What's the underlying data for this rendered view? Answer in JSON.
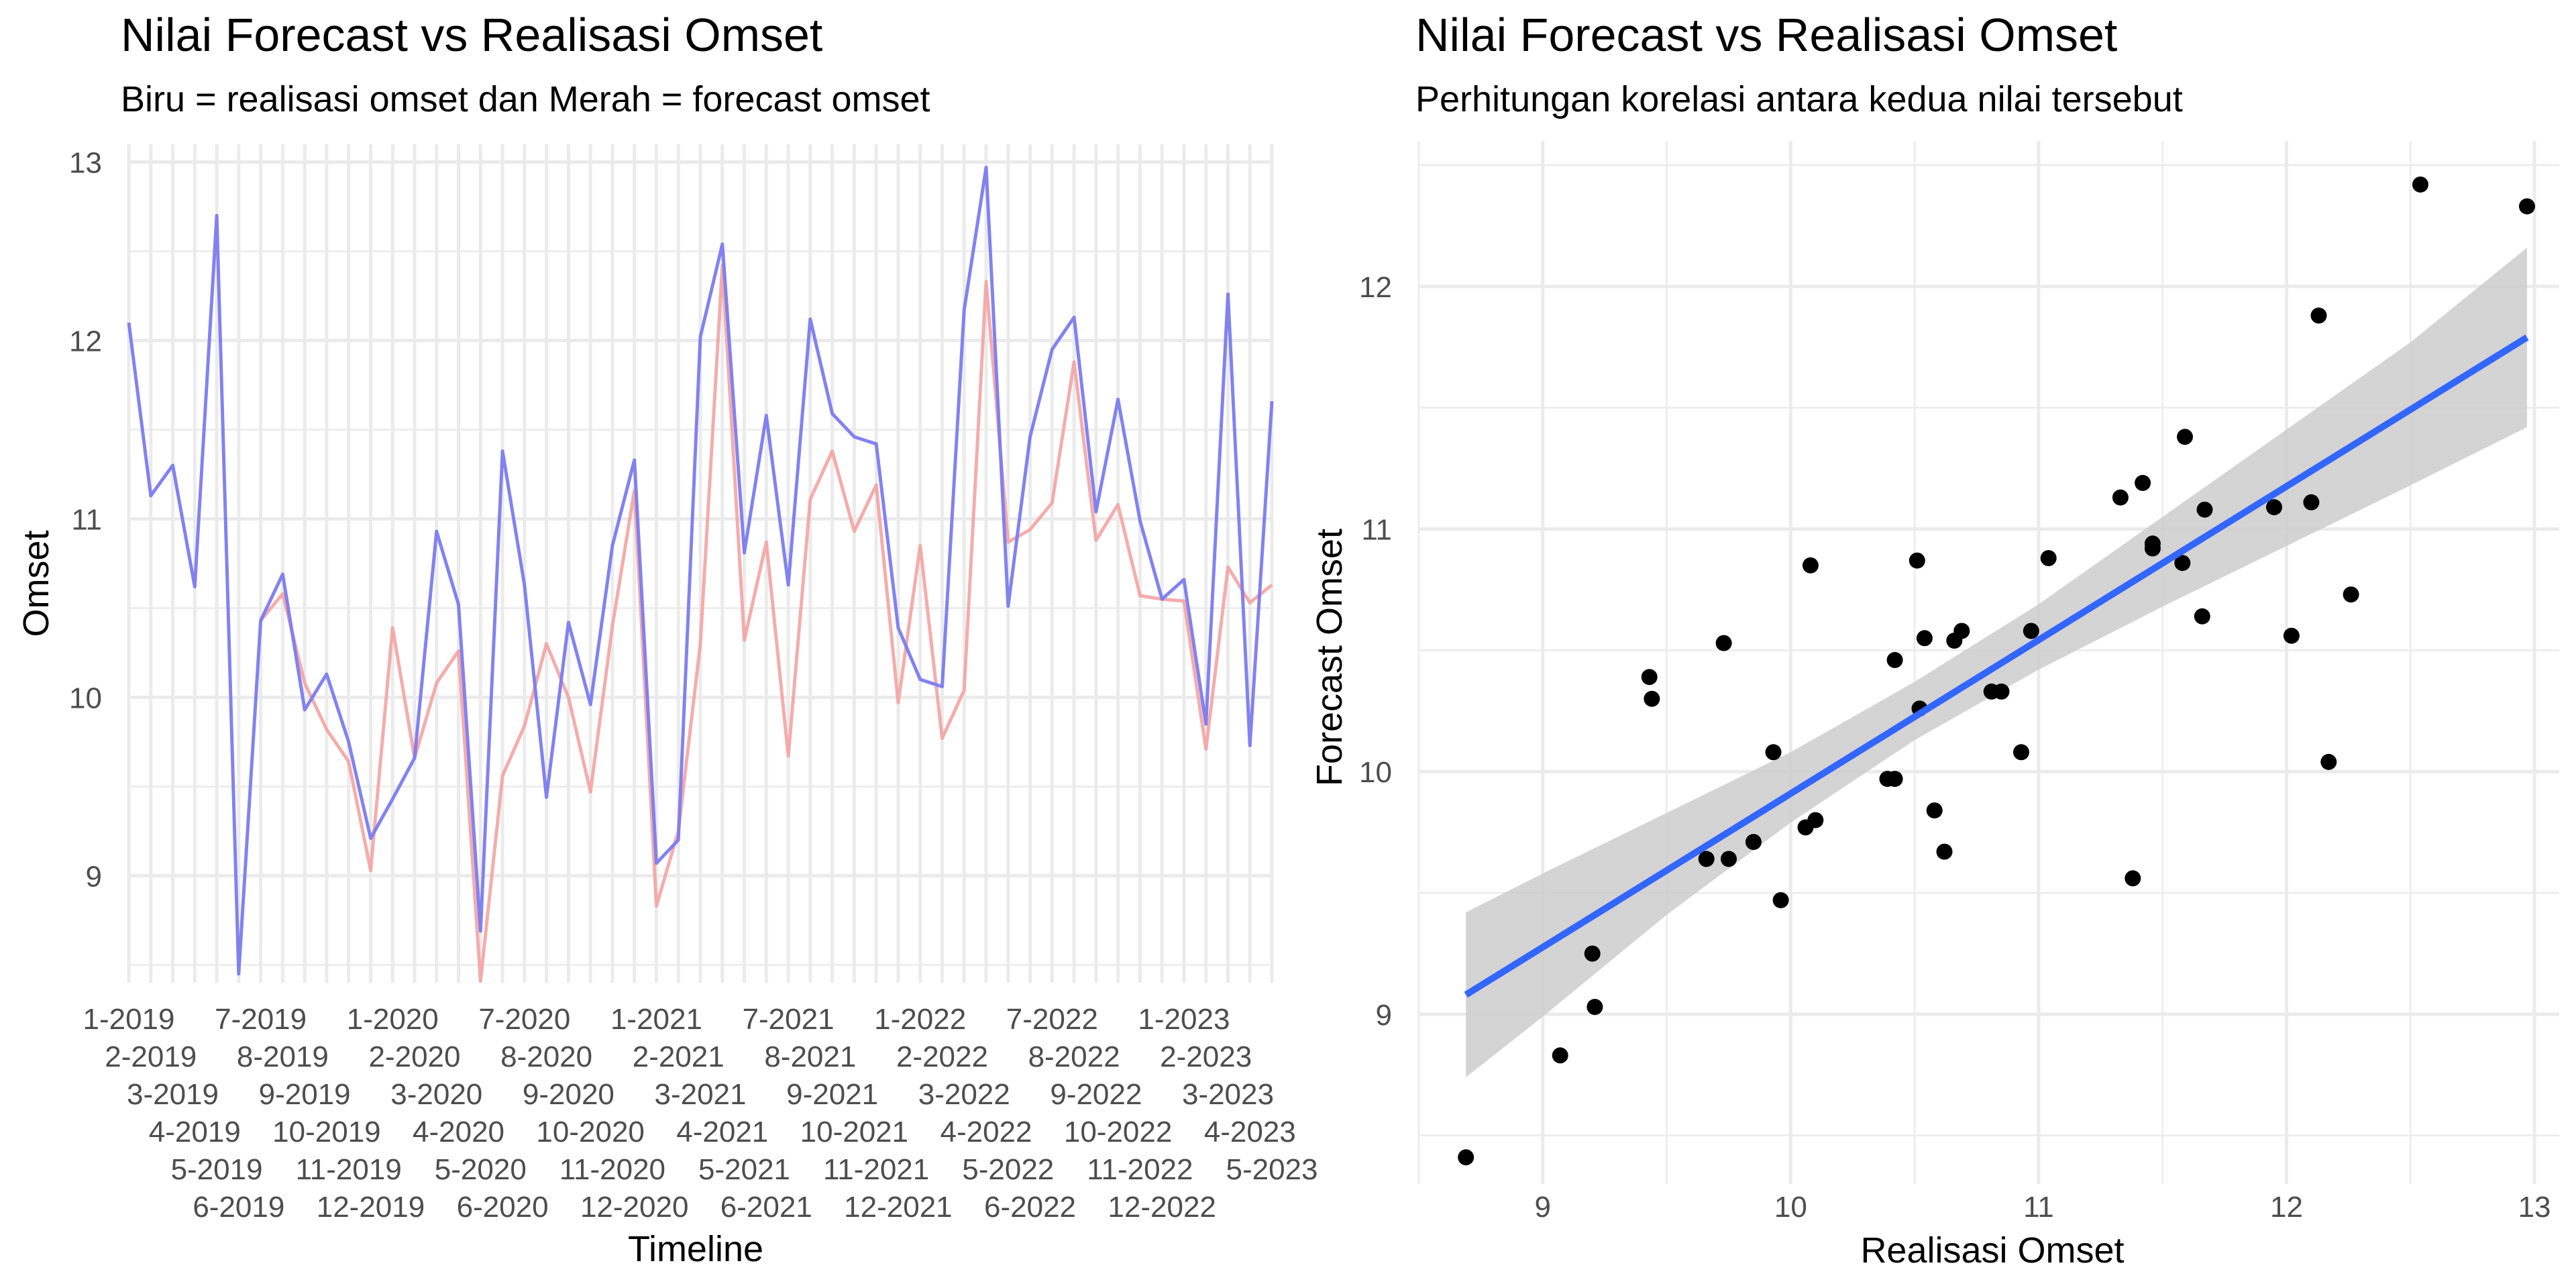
{
  "chart_data": [
    {
      "type": "line",
      "title": "Nilai Forecast vs Realisasi Omset",
      "subtitle": "Biru = realisasi omset dan Merah = forecast omset",
      "xlabel": "Timeline",
      "ylabel": "Omset",
      "ylim": [
        8.4,
        13.1
      ],
      "y_ticks": [
        "9",
        "10",
        "11",
        "12",
        "13"
      ],
      "grid": true,
      "legend": "none",
      "colors": {
        "realisasi": "#7b7bf0",
        "forecast": "#f4a3a3"
      },
      "categories": [
        "1-2019",
        "2-2019",
        "3-2019",
        "4-2019",
        "5-2019",
        "6-2019",
        "7-2019",
        "8-2019",
        "9-2019",
        "10-2019",
        "11-2019",
        "12-2019",
        "1-2020",
        "2-2020",
        "3-2020",
        "4-2020",
        "5-2020",
        "6-2020",
        "7-2020",
        "8-2020",
        "9-2020",
        "10-2020",
        "11-2020",
        "12-2020",
        "1-2021",
        "2-2021",
        "3-2021",
        "4-2021",
        "5-2021",
        "6-2021",
        "7-2021",
        "8-2021",
        "9-2021",
        "10-2021",
        "11-2021",
        "12-2021",
        "1-2022",
        "2-2022",
        "3-2022",
        "4-2022",
        "5-2022",
        "6-2022",
        "7-2022",
        "8-2022",
        "9-2022",
        "10-2022",
        "11-2022",
        "12-2022",
        "1-2023",
        "2-2023",
        "3-2023",
        "4-2023",
        "5-2023"
      ],
      "series": [
        {
          "key": "realisasi",
          "values": [
            12.1,
            11.13,
            11.3,
            10.62,
            12.7,
            8.45,
            10.43,
            10.69,
            9.93,
            10.13,
            9.75,
            9.21,
            9.43,
            9.66,
            10.93,
            10.52,
            8.69,
            11.38,
            10.63,
            9.44,
            10.42,
            9.96,
            10.85,
            11.33,
            9.07,
            9.2,
            12.02,
            12.54,
            10.81,
            11.58,
            10.63,
            12.12,
            11.59,
            11.46,
            11.42,
            10.39,
            10.1,
            10.06,
            12.17,
            12.97,
            10.51,
            11.46,
            11.95,
            12.13,
            11.04,
            11.67,
            10.99,
            10.55,
            10.66,
            9.85,
            12.26,
            9.73,
            11.66
          ]
        },
        {
          "key": "forecast",
          "values": [
            null,
            null,
            null,
            null,
            null,
            null,
            10.43,
            10.58,
            10.08,
            9.82,
            9.64,
            9.03,
            10.39,
            9.66,
            10.08,
            10.26,
            8.41,
            9.56,
            9.84,
            10.3,
            10.0,
            9.47,
            10.4,
            11.16,
            8.83,
            9.25,
            10.3,
            12.42,
            10.32,
            10.87,
            9.67,
            11.11,
            11.38,
            10.93,
            11.19,
            9.97,
            10.85,
            9.77,
            10.04,
            12.33,
            10.87,
            10.94,
            11.09,
            11.88,
            10.88,
            11.08,
            10.57,
            10.55,
            10.54,
            9.71,
            10.73,
            10.53,
            10.63
          ]
        }
      ]
    },
    {
      "type": "scatter",
      "title": "Nilai Forecast vs Realisasi Omset",
      "subtitle": "Perhitungan korelasi antara kedua nilai tersebut",
      "xlabel": "Realisasi Omset",
      "ylabel": "Forecast Omset",
      "xlim": [
        8.5,
        13.1
      ],
      "ylim": [
        8.3,
        12.6
      ],
      "x_ticks": [
        "9",
        "10",
        "11",
        "12",
        "13"
      ],
      "y_ticks": [
        "9",
        "10",
        "11",
        "12"
      ],
      "grid": true,
      "legend": "none",
      "colors": {
        "points": "#000000",
        "fit": "#3366ff",
        "band": "#cccccc"
      },
      "points": [
        [
          8.69,
          8.41
        ],
        [
          9.07,
          8.83
        ],
        [
          9.2,
          9.25
        ],
        [
          9.21,
          9.03
        ],
        [
          9.43,
          10.39
        ],
        [
          9.44,
          10.3
        ],
        [
          9.66,
          9.64
        ],
        [
          9.75,
          9.64
        ],
        [
          9.73,
          10.53
        ],
        [
          9.85,
          9.71
        ],
        [
          9.93,
          10.08
        ],
        [
          9.96,
          9.47
        ],
        [
          10.06,
          9.77
        ],
        [
          10.1,
          9.8
        ],
        [
          10.08,
          10.85
        ],
        [
          10.39,
          9.97
        ],
        [
          10.42,
          9.97
        ],
        [
          10.42,
          10.46
        ],
        [
          10.51,
          10.87
        ],
        [
          10.52,
          10.26
        ],
        [
          10.54,
          10.55
        ],
        [
          10.58,
          9.84
        ],
        [
          10.62,
          9.67
        ],
        [
          10.66,
          10.54
        ],
        [
          10.69,
          10.58
        ],
        [
          10.81,
          10.33
        ],
        [
          10.85,
          10.33
        ],
        [
          10.93,
          10.08
        ],
        [
          10.97,
          10.58
        ],
        [
          11.04,
          10.88
        ],
        [
          11.33,
          11.13
        ],
        [
          11.38,
          9.56
        ],
        [
          11.42,
          11.19
        ],
        [
          11.46,
          10.94
        ],
        [
          11.46,
          10.92
        ],
        [
          11.58,
          10.86
        ],
        [
          11.59,
          11.38
        ],
        [
          11.66,
          10.64
        ],
        [
          11.67,
          11.08
        ],
        [
          11.95,
          11.09
        ],
        [
          12.02,
          10.56
        ],
        [
          12.1,
          11.11
        ],
        [
          12.13,
          11.88
        ],
        [
          12.17,
          10.04
        ],
        [
          12.26,
          10.73
        ],
        [
          12.54,
          12.42
        ],
        [
          12.97,
          12.33
        ]
      ],
      "fit": {
        "x_start": 8.69,
        "x_end": 12.97,
        "y_start": 9.08,
        "y_end": 11.79
      },
      "band": {
        "x": [
          8.69,
          9.0,
          9.5,
          10.0,
          10.5,
          11.0,
          11.5,
          12.0,
          12.5,
          12.97
        ],
        "lower": [
          8.74,
          8.99,
          9.41,
          9.79,
          10.13,
          10.42,
          10.68,
          10.93,
          11.18,
          11.42
        ],
        "upper": [
          9.42,
          9.58,
          9.83,
          10.08,
          10.37,
          10.69,
          11.05,
          11.41,
          11.77,
          12.16
        ]
      }
    }
  ]
}
